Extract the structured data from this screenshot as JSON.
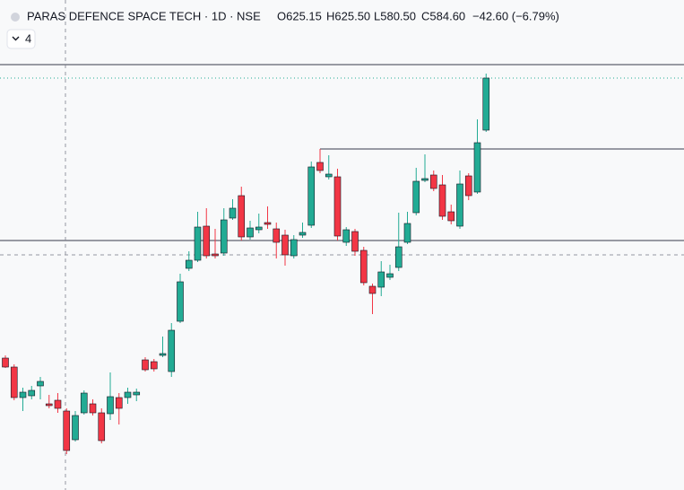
{
  "chart_data": {
    "type": "candlestick",
    "title": "PARAS DEFENCE SPACE TECH · 1D · NSE",
    "legend_values": [
      "O625.15",
      "H625.50",
      "L580.50",
      "C584.60",
      "−42.60 (−6.79%)"
    ],
    "indicator_count": "4",
    "ylim": [
      354,
      900
    ],
    "up_color": "#22ab94",
    "down_color": "#f23645",
    "levels": [
      828,
      734,
      632
    ],
    "open": [
      501,
      491,
      457,
      459,
      470,
      450,
      454,
      442,
      410,
      440,
      450,
      440,
      439,
      457,
      457,
      460,
      499,
      497,
      504,
      486,
      542,
      601,
      610,
      648,
      617,
      618,
      657,
      682,
      636,
      644,
      652,
      645,
      638,
      615,
      638,
      649,
      719,
      703,
      703,
      630,
      642,
      621,
      581,
      580,
      591,
      602,
      630,
      663,
      699,
      705,
      694,
      664,
      648,
      704,
      686,
      755
    ],
    "high": [
      504,
      494,
      468,
      470,
      480,
      460,
      462,
      445,
      442,
      465,
      455,
      445,
      485,
      462,
      468,
      467,
      502,
      500,
      525,
      540,
      595,
      620,
      664,
      668,
      645,
      668,
      678,
      692,
      654,
      662,
      670,
      652,
      644,
      638,
      652,
      720,
      734,
      727,
      712,
      647,
      645,
      625,
      584,
      609,
      605,
      663,
      664,
      713,
      728,
      710,
      705,
      672,
      710,
      707,
      767,
      818
    ],
    "low": [
      490,
      454,
      442,
      455,
      455,
      445,
      440,
      394,
      408,
      438,
      437,
      406,
      432,
      427,
      450,
      453,
      486,
      486,
      502,
      480,
      540,
      598,
      608,
      612,
      612,
      615,
      655,
      632,
      633,
      640,
      645,
      612,
      604,
      612,
      635,
      646,
      707,
      700,
      632,
      626,
      615,
      582,
      550,
      570,
      588,
      598,
      628,
      660,
      697,
      687,
      655,
      650,
      645,
      677,
      684,
      753
    ],
    "close": [
      491,
      457,
      463,
      465,
      475,
      448,
      445,
      398,
      437,
      462,
      440,
      409,
      458,
      445,
      463,
      463,
      488,
      489,
      506,
      532,
      586,
      610,
      647,
      615,
      615,
      655,
      668,
      636,
      646,
      647,
      650,
      630,
      616,
      633,
      641,
      714,
      710,
      706,
      637,
      644,
      620,
      585,
      573,
      597,
      595,
      625,
      651,
      698,
      701,
      690,
      659,
      654,
      695,
      682,
      741,
      813
    ]
  }
}
